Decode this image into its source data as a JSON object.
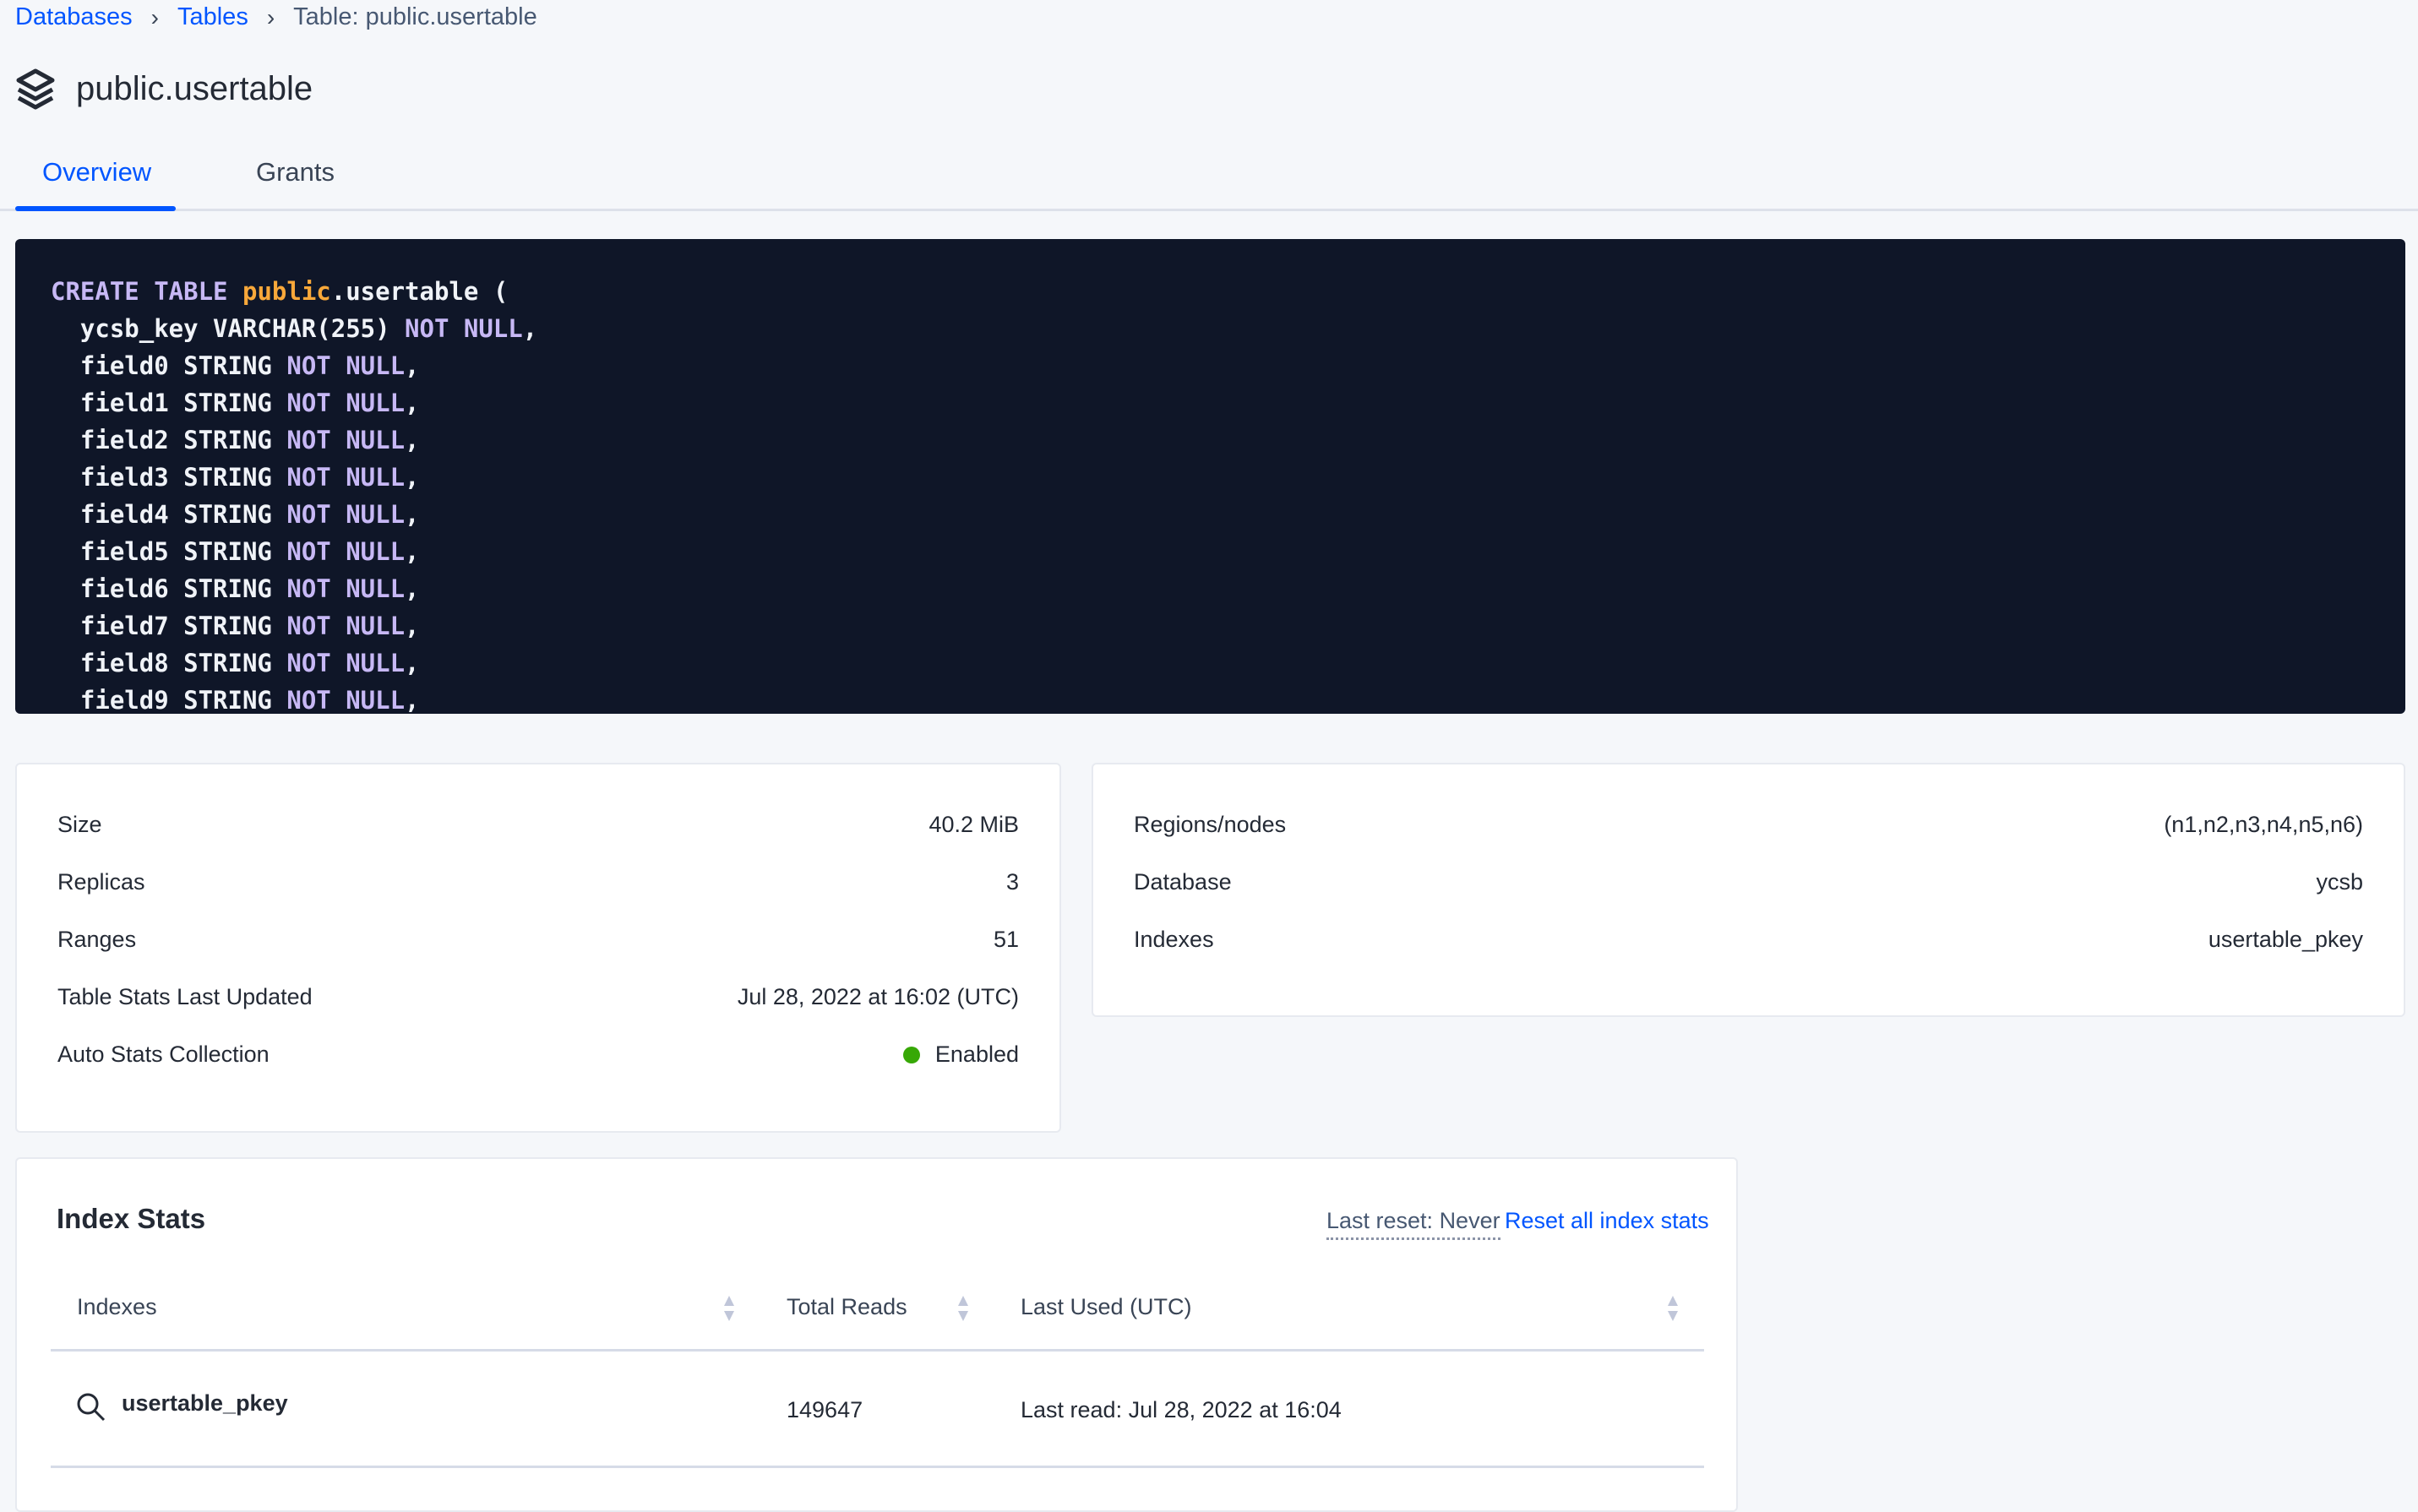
{
  "breadcrumb": {
    "items": [
      "Databases",
      "Tables"
    ],
    "current": "Table: public.usertable",
    "separator": ">"
  },
  "header": {
    "title": "public.usertable",
    "icon": "stack-icon"
  },
  "tabs": [
    {
      "label": "Overview",
      "active": true
    },
    {
      "label": "Grants",
      "active": false
    }
  ],
  "schema": {
    "lines": [
      [
        [
          "kw",
          "CREATE TABLE "
        ],
        [
          "sc",
          "public"
        ],
        [
          "",
          "."
        ],
        [
          "",
          "usertable ("
        ]
      ],
      [
        [
          "",
          "  ycsb_key VARCHAR(255) "
        ],
        [
          "kw",
          "NOT NULL"
        ],
        [
          "",
          ","
        ]
      ],
      [
        [
          "",
          "  field0 STRING "
        ],
        [
          "kw",
          "NOT NULL"
        ],
        [
          "",
          ","
        ]
      ],
      [
        [
          "",
          "  field1 STRING "
        ],
        [
          "kw",
          "NOT NULL"
        ],
        [
          "",
          ","
        ]
      ],
      [
        [
          "",
          "  field2 STRING "
        ],
        [
          "kw",
          "NOT NULL"
        ],
        [
          "",
          ","
        ]
      ],
      [
        [
          "",
          "  field3 STRING "
        ],
        [
          "kw",
          "NOT NULL"
        ],
        [
          "",
          ","
        ]
      ],
      [
        [
          "",
          "  field4 STRING "
        ],
        [
          "kw",
          "NOT NULL"
        ],
        [
          "",
          ","
        ]
      ],
      [
        [
          "",
          "  field5 STRING "
        ],
        [
          "kw",
          "NOT NULL"
        ],
        [
          "",
          ","
        ]
      ],
      [
        [
          "",
          "  field6 STRING "
        ],
        [
          "kw",
          "NOT NULL"
        ],
        [
          "",
          ","
        ]
      ],
      [
        [
          "",
          "  field7 STRING "
        ],
        [
          "kw",
          "NOT NULL"
        ],
        [
          "",
          ","
        ]
      ],
      [
        [
          "",
          "  field8 STRING "
        ],
        [
          "kw",
          "NOT NULL"
        ],
        [
          "",
          ","
        ]
      ],
      [
        [
          "",
          "  field9 STRING "
        ],
        [
          "kw",
          "NOT NULL"
        ],
        [
          "",
          ","
        ]
      ]
    ]
  },
  "stats_left": [
    {
      "label": "Size",
      "value": "40.2 MiB"
    },
    {
      "label": "Replicas",
      "value": "3"
    },
    {
      "label": "Ranges",
      "value": "51"
    },
    {
      "label": "Table Stats Last Updated",
      "value": "Jul 28, 2022 at 16:02 (UTC)"
    },
    {
      "label": "Auto Stats Collection",
      "value": "Enabled",
      "status_color": "#37a806"
    }
  ],
  "stats_right": [
    {
      "label": "Regions/nodes",
      "value": "(n1,n2,n3,n4,n5,n6)"
    },
    {
      "label": "Database",
      "value": "ycsb"
    },
    {
      "label": "Indexes",
      "value": "usertable_pkey"
    }
  ],
  "index_stats": {
    "title": "Index Stats",
    "last_reset": "Last reset: Never",
    "reset_link": "Reset all index stats",
    "columns": [
      "Indexes",
      "Total Reads",
      "Last Used (UTC)"
    ],
    "rows": [
      {
        "index": "usertable_pkey",
        "total_reads": "149647",
        "last_used": "Last read: Jul 28, 2022 at 16:04"
      }
    ]
  },
  "colors": {
    "accent": "#0055ff",
    "code_bg": "#0f1628",
    "keyword": "#c7b8f5",
    "schema": "#f9a83a"
  }
}
